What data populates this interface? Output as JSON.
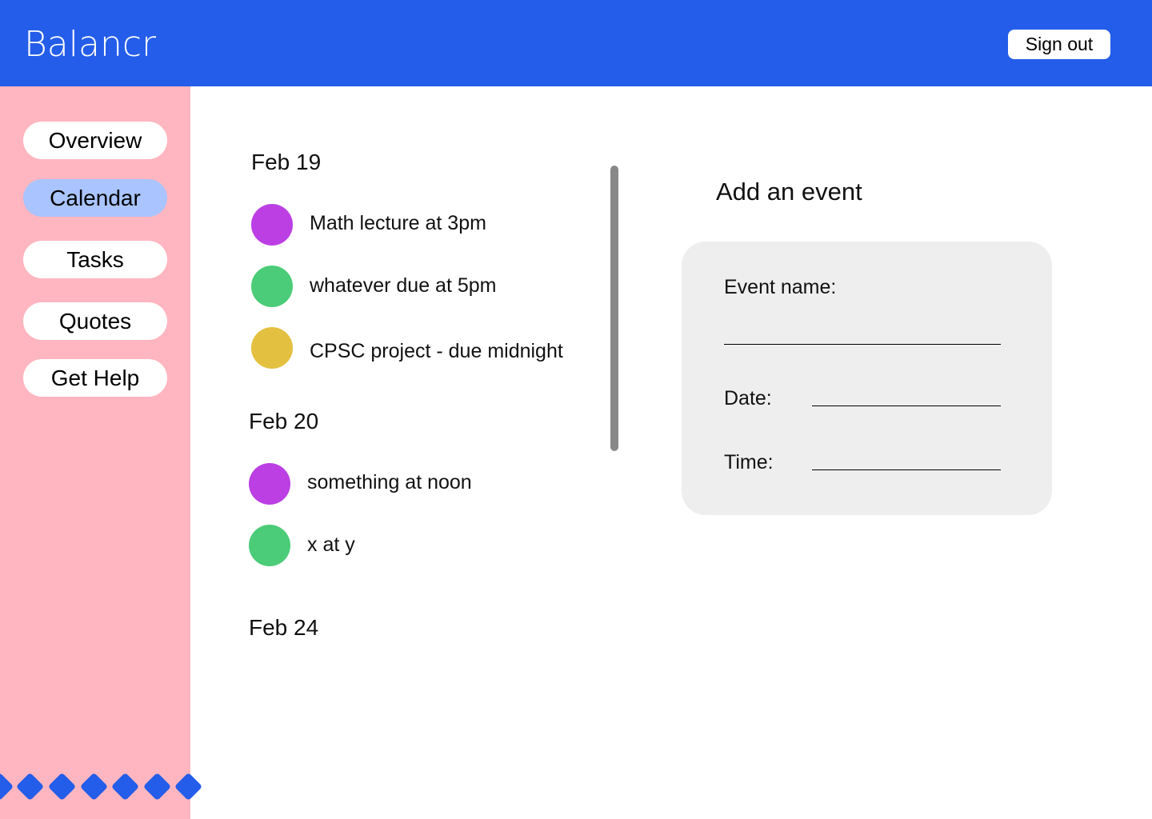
{
  "header": {
    "brand": "Balancr",
    "sign_out": "Sign out"
  },
  "sidebar": {
    "items": [
      {
        "label": "Overview",
        "active": false
      },
      {
        "label": "Calendar",
        "active": true
      },
      {
        "label": "Tasks",
        "active": false
      },
      {
        "label": "Quotes",
        "active": false
      },
      {
        "label": "Get Help",
        "active": false
      }
    ]
  },
  "calendar": {
    "days": [
      {
        "date": "Feb 19",
        "events": [
          {
            "label": "Math lecture at 3pm",
            "color": "#bb3fe3"
          },
          {
            "label": "whatever due at 5pm",
            "color": "#4bcc78"
          },
          {
            "label": "CPSC project - due midnight",
            "color": "#e3c03f"
          }
        ]
      },
      {
        "date": "Feb 20",
        "events": [
          {
            "label": "something at noon",
            "color": "#bb3fe3"
          },
          {
            "label": "x at y",
            "color": "#4bcc78"
          }
        ]
      },
      {
        "date": "Feb 24",
        "events": []
      }
    ]
  },
  "add_event": {
    "title": "Add an event",
    "name_label": "Event name:",
    "date_label": "Date:",
    "time_label": "Time:"
  },
  "colors": {
    "header": "#245de9",
    "sidebar": "#ffb6c0",
    "active_nav": "#aac4ff"
  }
}
